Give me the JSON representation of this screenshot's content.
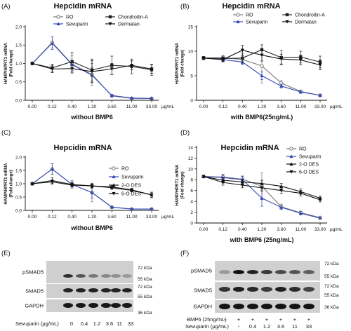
{
  "chart_data": [
    {
      "panel": "(A)",
      "type": "line",
      "title": "Hepcidin mRNA",
      "ylabel": "HAMP/HPRT1 mRNA\n(Fold change)",
      "xlabel": "without BMP6",
      "x_unit": "μg/mL",
      "categories": [
        "0.00",
        "0.12",
        "0.40",
        "1.20",
        "3.60",
        "11.00",
        "33.00"
      ],
      "ylim": [
        0,
        2
      ],
      "yticks": [
        "0.0",
        "0.5",
        "1.0",
        "1.5",
        "2.0"
      ],
      "legend": [
        "RO",
        "Chondroitin-A",
        "Sevuparin",
        "Dermatan"
      ],
      "legend_position": "top",
      "series": [
        {
          "name": "RO",
          "color": "#777777",
          "marker": "circle",
          "values": [
            1.0,
            1.57,
            0.98,
            0.7,
            0.12,
            0.05,
            0.05
          ],
          "err": [
            0.03,
            0.15,
            0.25,
            0.3,
            0.03,
            0.02,
            0.02
          ]
        },
        {
          "name": "Sevuparin",
          "color": "#3547b3",
          "marker": "triangle-up",
          "values": [
            1.0,
            1.55,
            0.97,
            0.68,
            0.13,
            0.06,
            0.05
          ],
          "err": [
            0.03,
            0.17,
            0.1,
            0.2,
            0.03,
            0.02,
            0.02
          ]
        },
        {
          "name": "Chondroitin-A",
          "color": "#222222",
          "marker": "square",
          "values": [
            1.0,
            0.88,
            1.05,
            0.82,
            0.95,
            0.92,
            0.83
          ],
          "err": [
            0.03,
            0.1,
            0.25,
            0.3,
            0.25,
            0.2,
            0.15
          ]
        },
        {
          "name": "Dermatan",
          "color": "#111111",
          "marker": "triangle-down",
          "values": [
            1.0,
            0.85,
            0.86,
            0.78,
            0.85,
            0.95,
            0.85
          ],
          "err": [
            0.03,
            0.1,
            0.1,
            0.3,
            0.15,
            0.12,
            0.12
          ]
        }
      ]
    },
    {
      "panel": "(B)",
      "type": "line",
      "title": "Hepcidin mRNA",
      "ylabel": "HAMP/HPRT1 mRNA\n(Fold change)",
      "xlabel": "with BMP6(25ng/mL)",
      "x_unit": "μg/mL",
      "categories": [
        "0.00",
        "0.12",
        "0.40",
        "1.20",
        "3.60",
        "11.00",
        "33.00"
      ],
      "ylim": [
        0,
        15
      ],
      "yticks": [
        "0",
        "5",
        "10",
        "15"
      ],
      "legend": [
        "RO",
        "Chondroitin-A",
        "Sevuparin",
        "Dermatan"
      ],
      "legend_position": "top",
      "series": [
        {
          "name": "RO",
          "color": "#777777",
          "marker": "circle",
          "values": [
            8.6,
            8.7,
            8.3,
            7.0,
            3.5,
            1.8,
            1.0
          ],
          "err": [
            0.3,
            0.4,
            0.8,
            3.5,
            0.5,
            0.3,
            0.2
          ]
        },
        {
          "name": "Sevuparin",
          "color": "#3547b3",
          "marker": "triangle-up",
          "values": [
            8.6,
            8.3,
            7.8,
            5.0,
            2.9,
            1.7,
            1.0
          ],
          "err": [
            0.3,
            0.5,
            0.6,
            0.8,
            0.4,
            0.3,
            0.2
          ]
        },
        {
          "name": "Chondroitin-A",
          "color": "#222222",
          "marker": "square",
          "values": [
            8.6,
            8.5,
            8.6,
            10.3,
            8.7,
            8.8,
            7.8
          ],
          "err": [
            0.3,
            0.5,
            1.0,
            1.0,
            1.5,
            1.2,
            1.2
          ]
        },
        {
          "name": "Dermatan",
          "color": "#111111",
          "marker": "triangle-down",
          "values": [
            8.6,
            8.3,
            10.2,
            9.2,
            8.4,
            8.2,
            7.2
          ],
          "err": [
            0.3,
            0.4,
            1.0,
            1.2,
            1.0,
            1.0,
            1.0
          ]
        }
      ]
    },
    {
      "panel": "(C)",
      "type": "line",
      "title": "Hepcidin mRNA",
      "ylabel": "HAMP/HPRT1 mRNA\n(Fold change)",
      "xlabel": "without BMP6",
      "x_unit": "μg/mL",
      "categories": [
        "0.00",
        "0.12",
        "0.40",
        "1.20",
        "3.60",
        "11.00",
        "33.00"
      ],
      "ylim": [
        0,
        2
      ],
      "yticks": [
        "0.0",
        "0.5",
        "1.0",
        "1.5",
        "2.0"
      ],
      "legend": [
        "RO",
        "Sevuparin",
        "2-O DES",
        "6-O DES"
      ],
      "legend_position": "right",
      "series": [
        {
          "name": "RO",
          "color": "#777777",
          "marker": "circle",
          "values": [
            1.0,
            1.55,
            0.97,
            0.67,
            0.12,
            0.05,
            0.05
          ],
          "err": [
            0.02,
            0.2,
            0.15,
            0.35,
            0.03,
            0.02,
            0.02
          ]
        },
        {
          "name": "Sevuparin",
          "color": "#3547b3",
          "marker": "triangle-up",
          "values": [
            1.0,
            1.55,
            0.97,
            0.67,
            0.12,
            0.05,
            0.05
          ],
          "err": [
            0.02,
            0.2,
            0.1,
            0.2,
            0.03,
            0.02,
            0.02
          ]
        },
        {
          "name": "2-O DES",
          "color": "#111111",
          "marker": "triangle-up",
          "values": [
            1.0,
            1.12,
            0.97,
            0.92,
            0.88,
            0.77,
            0.58
          ],
          "err": [
            0.02,
            0.1,
            0.08,
            0.08,
            0.06,
            0.06,
            0.1
          ]
        },
        {
          "name": "6-O DES",
          "color": "#111111",
          "marker": "triangle-down",
          "values": [
            1.0,
            1.07,
            0.95,
            0.92,
            0.85,
            0.75,
            0.58
          ],
          "err": [
            0.02,
            0.08,
            0.07,
            0.07,
            0.06,
            0.06,
            0.1
          ]
        }
      ]
    },
    {
      "panel": "(D)",
      "type": "line",
      "title": "Hepcidin mRNA",
      "ylabel": "HAMP/HPRT1 mRNA\n(Fold change)",
      "xlabel": "with BMP6 (25ng/mL)",
      "x_unit": "μg/mL",
      "categories": [
        "0.00",
        "0.12",
        "0.40",
        "1.20",
        "3.60",
        "11.00",
        "33.00"
      ],
      "ylim": [
        0,
        14
      ],
      "yticks": [
        "0",
        "2",
        "4",
        "6",
        "8",
        "10",
        "12",
        "14"
      ],
      "legend": [
        "RO",
        "Sevuparin",
        "2-O DES",
        "6-O DES"
      ],
      "legend_position": "right",
      "series": [
        {
          "name": "RO",
          "color": "#777777",
          "marker": "circle",
          "values": [
            8.6,
            8.5,
            8.1,
            6.8,
            3.0,
            1.9,
            1.0
          ],
          "err": [
            0.2,
            0.4,
            0.6,
            2.5,
            0.5,
            0.3,
            0.2
          ]
        },
        {
          "name": "Sevuparin",
          "color": "#3547b3",
          "marker": "triangle-up",
          "values": [
            8.6,
            8.4,
            8.0,
            4.6,
            2.9,
            1.8,
            0.9
          ],
          "err": [
            0.2,
            0.6,
            0.6,
            1.5,
            0.4,
            0.3,
            0.2
          ]
        },
        {
          "name": "2-O DES",
          "color": "#111111",
          "marker": "triangle-up",
          "values": [
            8.6,
            7.9,
            7.6,
            7.3,
            6.8,
            5.8,
            4.6
          ],
          "err": [
            0.2,
            0.5,
            0.5,
            0.6,
            0.5,
            0.5,
            0.4
          ]
        },
        {
          "name": "6-O DES",
          "color": "#111111",
          "marker": "triangle-down",
          "values": [
            8.6,
            7.5,
            7.0,
            6.5,
            6.0,
            5.5,
            4.3
          ],
          "err": [
            0.2,
            0.5,
            0.5,
            0.6,
            0.5,
            0.5,
            0.4
          ]
        }
      ]
    }
  ],
  "blots": [
    {
      "panel": "(E)",
      "rows": [
        "pSMAD5",
        "SMAD5",
        "GAPDH"
      ],
      "kda_labels": [
        "72 kDa",
        "55 kDa",
        "72 kDa",
        "55 kDa",
        "36 kDa"
      ],
      "footer_label": "Sevuparin (μg/mL)",
      "lanes": [
        "0",
        "0.4",
        "1.2",
        "3.6",
        "11",
        "33"
      ]
    },
    {
      "panel": "(F)",
      "rows": [
        "pSMAD5",
        "SMAD5",
        "GAPDH"
      ],
      "kda_labels": [
        "72 kDa",
        "55 kDa",
        "72 kDa",
        "55 kDa",
        "36 kDa"
      ],
      "footer_labels": [
        "BMP6 (25ng/mL)",
        "Sevuparin (μg/mL)"
      ],
      "bmp6_lanes": [
        "-",
        "+",
        "+",
        "+",
        "+",
        "+",
        "+"
      ],
      "sev_lanes": [
        "-",
        "-",
        "0.4",
        "1.2",
        "3.6",
        "11",
        "33"
      ]
    }
  ]
}
